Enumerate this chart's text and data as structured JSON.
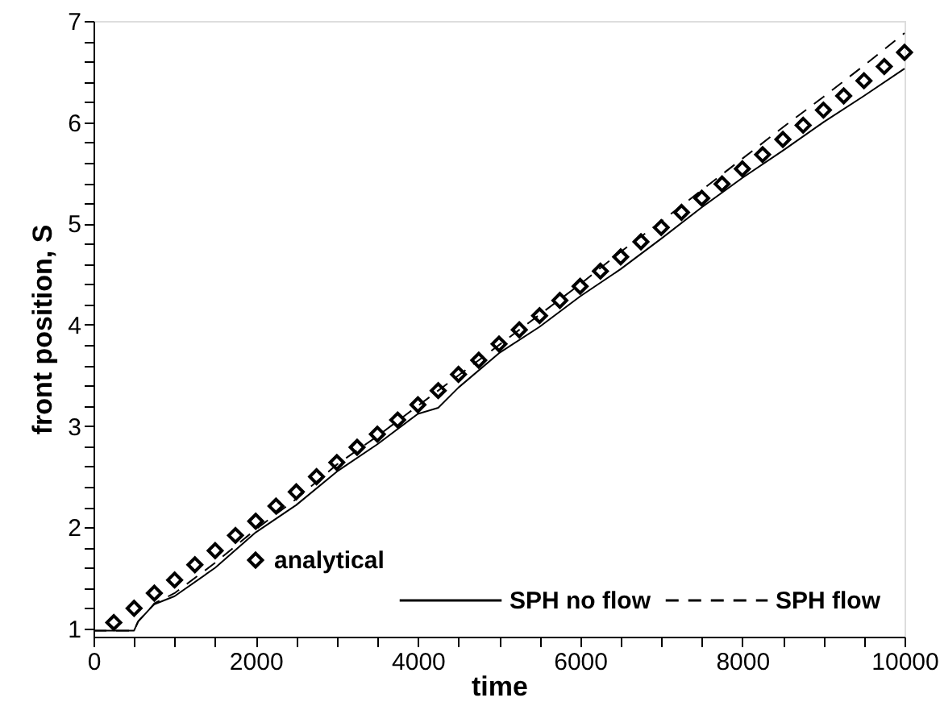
{
  "chart_data": {
    "type": "line",
    "xlabel": "time",
    "ylabel": "front position, S",
    "xlim": [
      0,
      10000
    ],
    "ylim": [
      0.92,
      7
    ],
    "xticks": [
      0,
      {
        "value": 500,
        "label": null
      },
      {
        "value": 1000,
        "label": null
      },
      {
        "value": 1500,
        "label": null
      },
      2000,
      {
        "value": 2500,
        "label": null
      },
      {
        "value": 3000,
        "label": null
      },
      {
        "value": 3500,
        "label": null
      },
      4000,
      {
        "value": 4500,
        "label": null
      },
      {
        "value": 5000,
        "label": null
      },
      {
        "value": 5500,
        "label": null
      },
      6000,
      {
        "value": 6500,
        "label": null
      },
      {
        "value": 7000,
        "label": null
      },
      {
        "value": 7500,
        "label": null
      },
      8000,
      {
        "value": 8500,
        "label": null
      },
      {
        "value": 9000,
        "label": null
      },
      {
        "value": 9500,
        "label": null
      },
      10000
    ],
    "yticks": [
      1,
      {
        "value": 1.2,
        "label": null
      },
      {
        "value": 1.4,
        "label": null
      },
      {
        "value": 1.6,
        "label": null
      },
      {
        "value": 1.8,
        "label": null
      },
      2,
      {
        "value": 2.2,
        "label": null
      },
      {
        "value": 2.4,
        "label": null
      },
      {
        "value": 2.6,
        "label": null
      },
      {
        "value": 2.8,
        "label": null
      },
      3,
      {
        "value": 3.2,
        "label": null
      },
      {
        "value": 3.4,
        "label": null
      },
      {
        "value": 3.6,
        "label": null
      },
      {
        "value": 3.8,
        "label": null
      },
      4,
      {
        "value": 4.2,
        "label": null
      },
      {
        "value": 4.4,
        "label": null
      },
      {
        "value": 4.6,
        "label": null
      },
      {
        "value": 4.8,
        "label": null
      },
      5,
      {
        "value": 5.2,
        "label": null
      },
      {
        "value": 5.4,
        "label": null
      },
      {
        "value": 5.6,
        "label": null
      },
      {
        "value": 5.8,
        "label": null
      },
      6,
      {
        "value": 6.2,
        "label": null
      },
      {
        "value": 6.4,
        "label": null
      },
      {
        "value": 6.6,
        "label": null
      },
      {
        "value": 6.8,
        "label": null
      },
      7
    ],
    "grid": false,
    "legend": "bottom right",
    "series": [
      {
        "name": "analytical",
        "type": "scatter",
        "marker": "diamond",
        "color": "#000000",
        "x": [
          250,
          500,
          750,
          1000,
          1250,
          1500,
          1750,
          2000,
          2250,
          2500,
          2750,
          3000,
          3250,
          3500,
          3750,
          4000,
          4250,
          4500,
          4750,
          5000,
          5250,
          5500,
          5750,
          6000,
          6250,
          6500,
          6750,
          7000,
          7250,
          7500,
          7750,
          8000,
          8250,
          8500,
          8750,
          9000,
          9250,
          9500,
          9750,
          10000
        ],
        "values": [
          1.06,
          1.2,
          1.35,
          1.48,
          1.63,
          1.77,
          1.92,
          2.06,
          2.21,
          2.35,
          2.5,
          2.64,
          2.79,
          2.92,
          3.06,
          3.21,
          3.35,
          3.51,
          3.65,
          3.81,
          3.95,
          4.09,
          4.24,
          4.38,
          4.53,
          4.67,
          4.82,
          4.96,
          5.11,
          5.25,
          5.39,
          5.54,
          5.68,
          5.83,
          5.97,
          6.12,
          6.26,
          6.41,
          6.55,
          6.69
        ]
      },
      {
        "name": "SPH no flow",
        "line_style": "solid",
        "color": "#000000",
        "x": [
          0,
          500,
          550,
          700,
          750,
          1000,
          1500,
          2000,
          2500,
          3000,
          3500,
          4000,
          4250,
          4500,
          5000,
          5500,
          6000,
          6500,
          7000,
          7500,
          8000,
          8500,
          9000,
          9500,
          10000
        ],
        "values": [
          0.98,
          0.98,
          1.07,
          1.2,
          1.24,
          1.32,
          1.6,
          1.95,
          2.22,
          2.55,
          2.82,
          3.12,
          3.18,
          3.38,
          3.72,
          3.98,
          4.28,
          4.55,
          4.85,
          5.16,
          5.45,
          5.72,
          6.0,
          6.26,
          6.53
        ]
      },
      {
        "name": "SPH flow",
        "line_style": "dashed",
        "color": "#000000",
        "x": [
          0,
          500,
          550,
          700,
          750,
          1000,
          1500,
          2000,
          2500,
          3000,
          3500,
          4000,
          4500,
          5000,
          5500,
          6000,
          6500,
          7000,
          7500,
          8000,
          8500,
          9000,
          9500,
          10000
        ],
        "values": [
          0.98,
          0.98,
          1.07,
          1.2,
          1.25,
          1.35,
          1.65,
          1.98,
          2.28,
          2.62,
          2.9,
          3.2,
          3.5,
          3.8,
          4.1,
          4.4,
          4.72,
          5.02,
          5.33,
          5.64,
          5.95,
          6.25,
          6.56,
          6.88
        ]
      }
    ]
  }
}
